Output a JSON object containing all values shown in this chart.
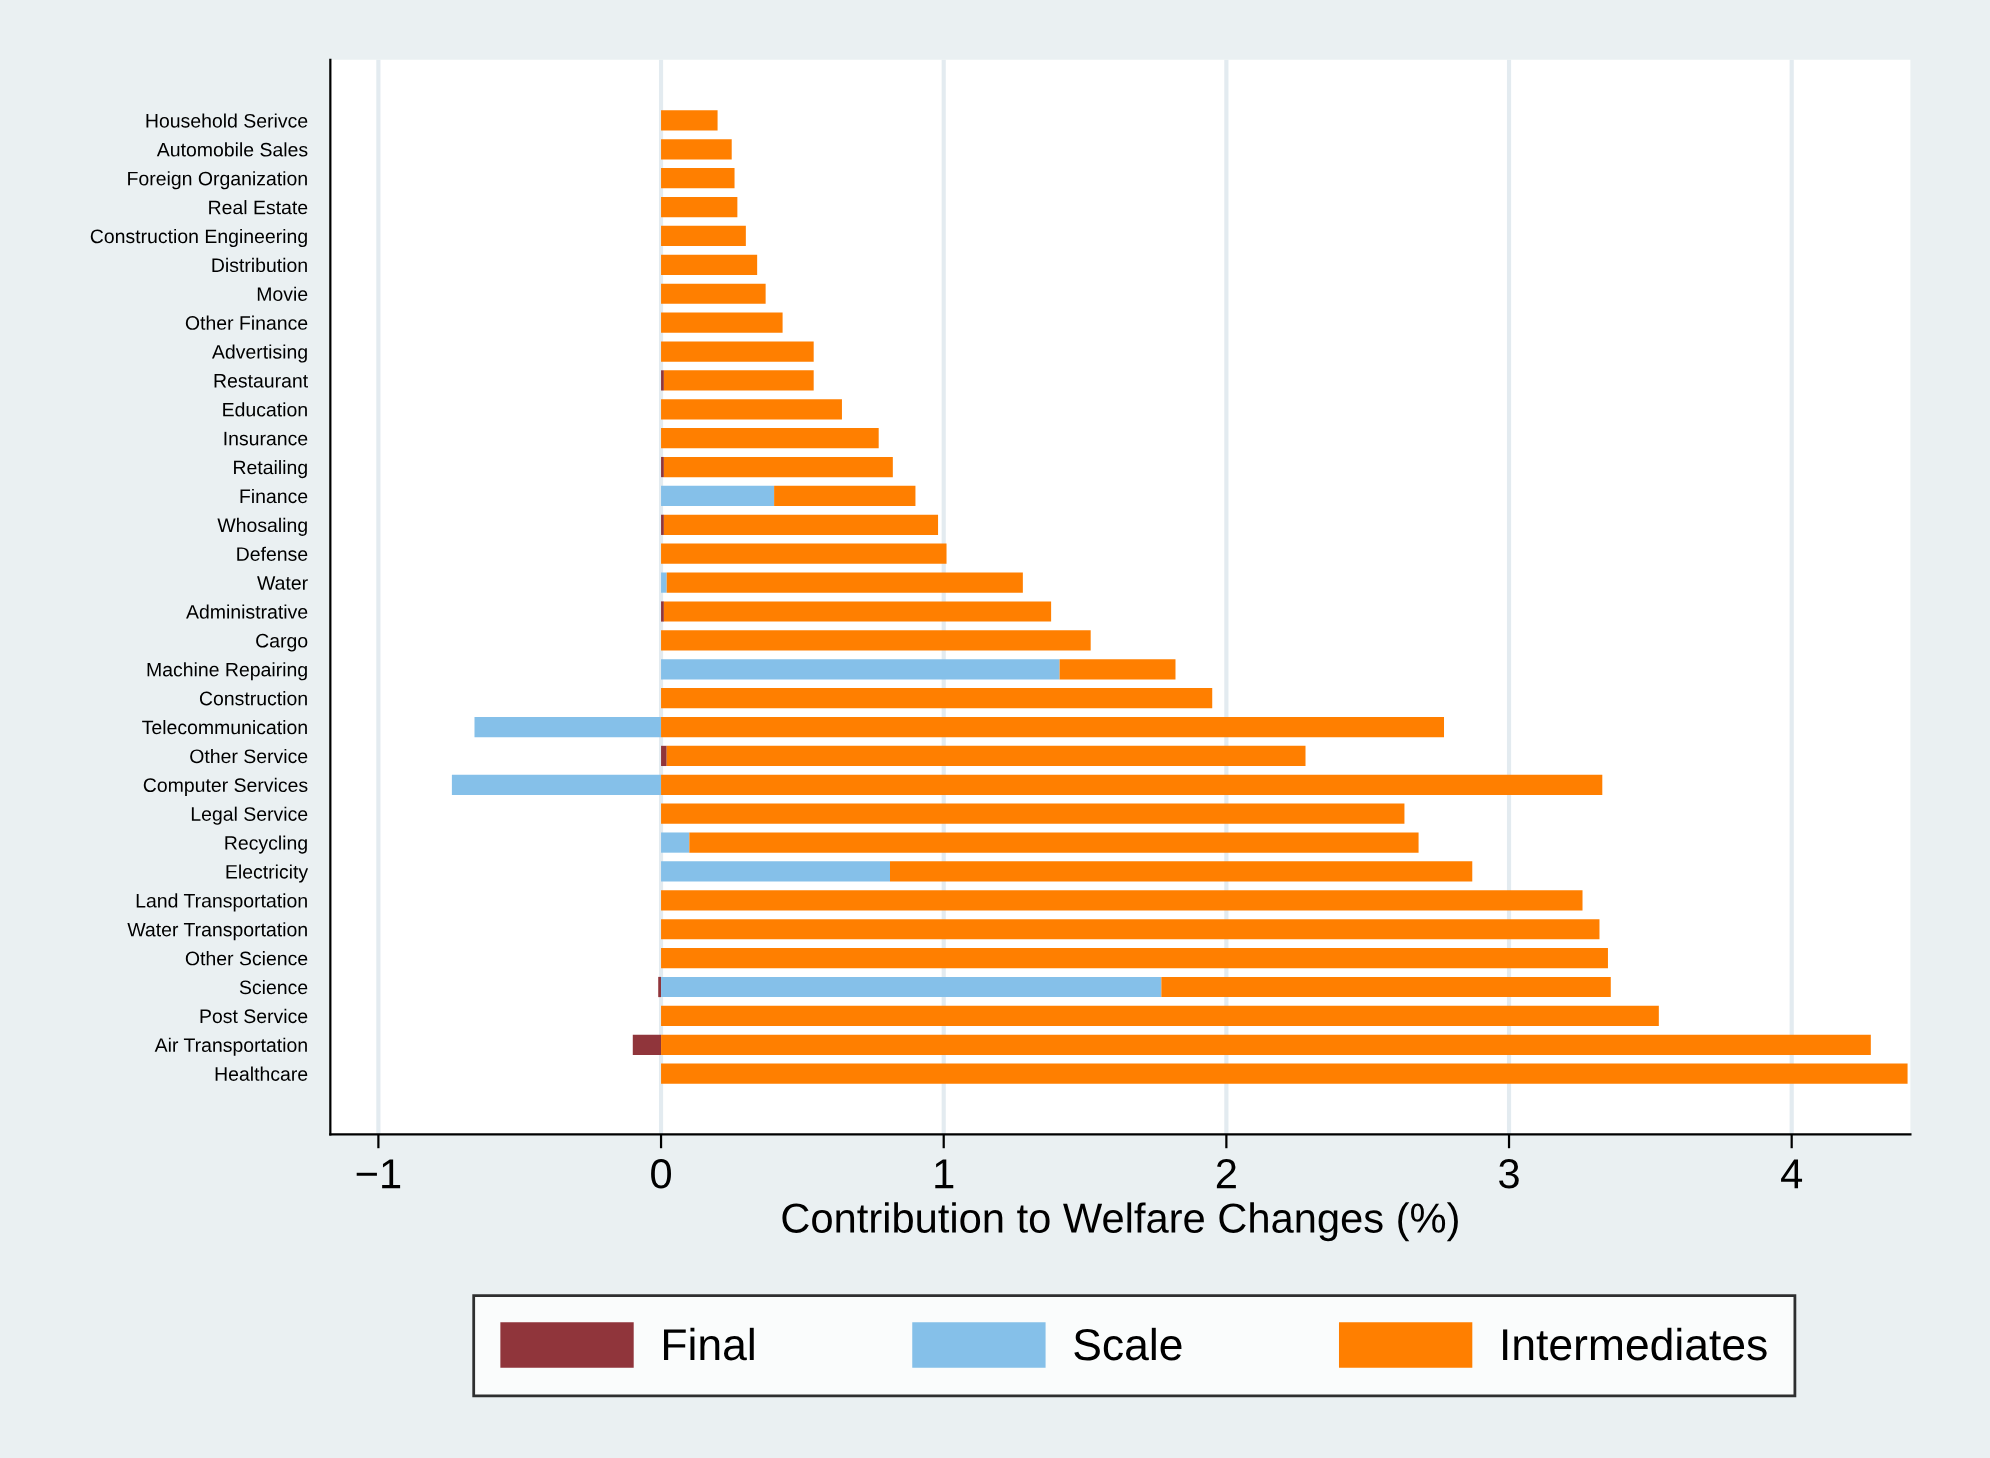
{
  "chart_data": {
    "type": "bar",
    "orientation": "horizontal",
    "stacked": true,
    "xlabel": "Contribution to Welfare Changes (%)",
    "categories": [
      "Household Serivce",
      "Automobile Sales",
      "Foreign Organization",
      "Real Estate",
      "Construction Engineering",
      "Distribution",
      "Movie",
      "Other Finance",
      "Advertising",
      "Restaurant",
      "Education",
      "Insurance",
      "Retailing",
      "Finance",
      "Whosaling",
      "Defense",
      "Water",
      "Administrative",
      "Cargo",
      "Machine Repairing",
      "Construction",
      "Telecommunication",
      "Other Service",
      "Computer Services",
      "Legal Service",
      "Recycling",
      "Electricity",
      "Land Transportation",
      "Water Transportation",
      "Other Science",
      "Science",
      "Post Service",
      "Air Transportation",
      "Healthcare"
    ],
    "series": [
      {
        "name": "Final",
        "color": "#90353b",
        "values": [
          0,
          0,
          0,
          0,
          0,
          0,
          0,
          0,
          0,
          0.01,
          0,
          0,
          0.01,
          0,
          0.01,
          0,
          0,
          0.01,
          0,
          0,
          0,
          0,
          0.02,
          0,
          0,
          0,
          0,
          0,
          0,
          0,
          -0.01,
          0,
          -0.1,
          0
        ]
      },
      {
        "name": "Scale",
        "color": "#85c0e9",
        "values": [
          0,
          0,
          0,
          0,
          0,
          0,
          0,
          0,
          0,
          0,
          0,
          0,
          0,
          0.4,
          0,
          0,
          0.02,
          0,
          0,
          1.41,
          0,
          -0.66,
          0,
          -0.74,
          0,
          0.1,
          0.81,
          0,
          0,
          0,
          1.77,
          0,
          0,
          0
        ]
      },
      {
        "name": "Intermediates",
        "color": "#ff7f00",
        "values": [
          0.2,
          0.25,
          0.26,
          0.27,
          0.3,
          0.34,
          0.37,
          0.43,
          0.54,
          0.53,
          0.64,
          0.77,
          0.81,
          0.5,
          0.97,
          1.01,
          1.26,
          1.37,
          1.52,
          0.41,
          1.95,
          2.77,
          2.26,
          3.33,
          2.63,
          2.58,
          2.06,
          3.26,
          3.32,
          3.35,
          1.59,
          3.53,
          4.28,
          4.41
        ]
      }
    ],
    "xlim": [
      -1.17,
      4.42
    ],
    "xticks": [
      {
        "value": -1,
        "label": "−1"
      },
      0,
      1,
      2,
      3,
      4
    ],
    "grid": "x",
    "legend": "bottom"
  }
}
